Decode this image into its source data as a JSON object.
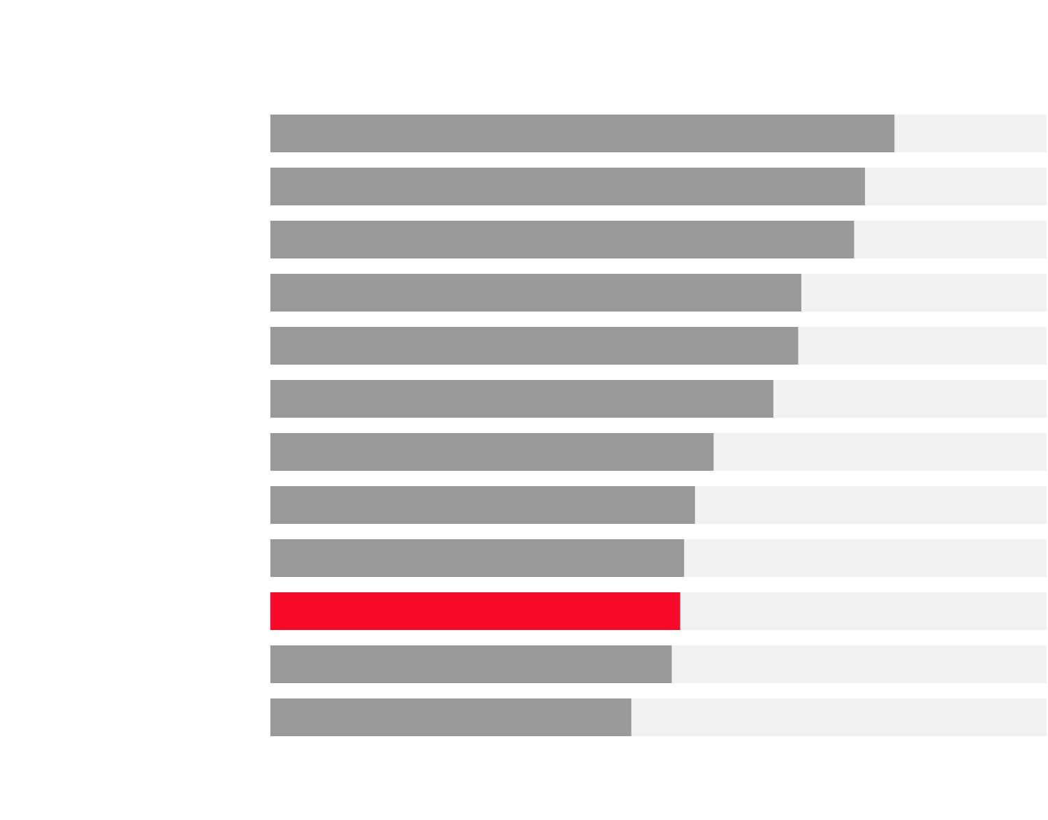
{
  "chart_data": {
    "type": "bar",
    "orientation": "horizontal",
    "title": "",
    "xlabel": "",
    "ylabel": "",
    "xlim": [
      0,
      100
    ],
    "grid": false,
    "legend": "none",
    "categories": [
      "",
      "",
      "",
      "",
      "",
      "",
      "",
      "",
      "",
      "",
      "",
      ""
    ],
    "values": [
      80.4,
      76.6,
      75.2,
      68.4,
      68.0,
      64.8,
      57.1,
      54.7,
      53.3,
      52.8,
      51.7,
      46.5
    ],
    "highlight_index": 9
  },
  "colors": {
    "bar": "#999999",
    "highlight": "#f90a28",
    "track": "#f2f2f2",
    "background": "#ffffff"
  }
}
